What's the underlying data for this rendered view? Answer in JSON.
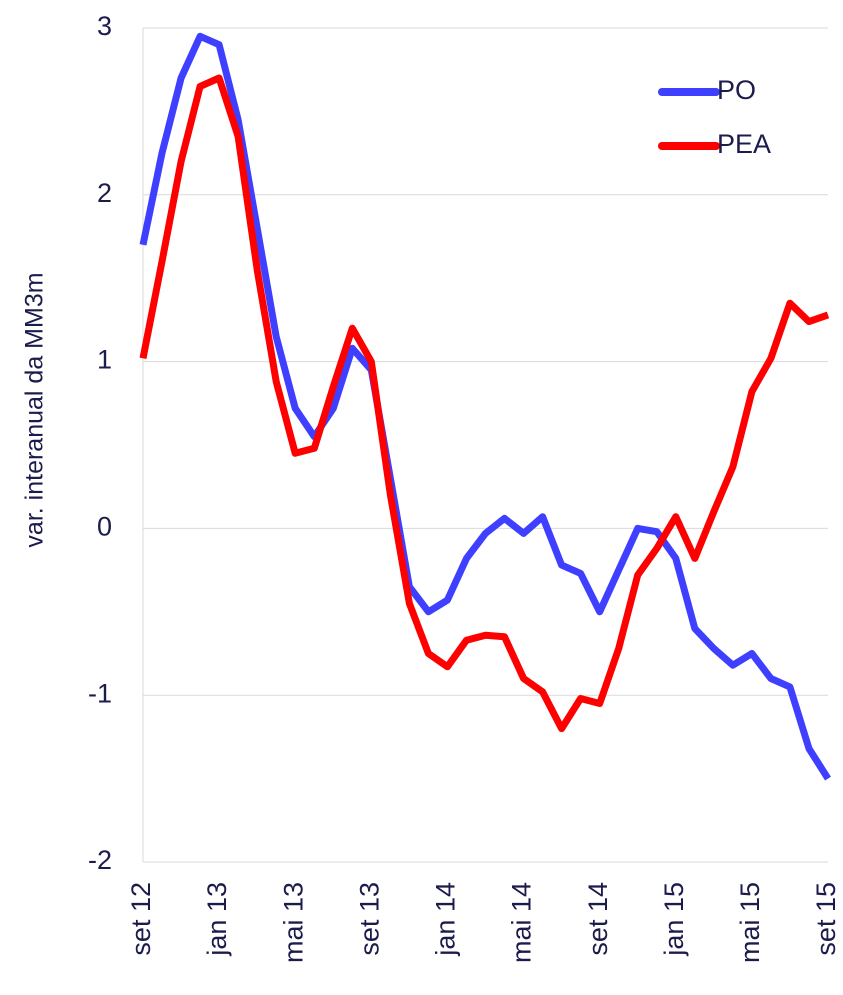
{
  "chart_data": {
    "type": "line",
    "ylabel": "var. interanual da MM3m",
    "categories": [
      "set 12",
      null,
      null,
      null,
      "jan 13",
      null,
      null,
      null,
      "mai 13",
      null,
      null,
      null,
      "set 13",
      null,
      null,
      null,
      "jan 14",
      null,
      null,
      null,
      "mai 14",
      null,
      null,
      null,
      "set 14",
      null,
      null,
      null,
      "jan 15",
      null,
      null,
      null,
      "mai 15",
      null,
      null,
      null,
      "set 15"
    ],
    "series": [
      {
        "name": "PO",
        "color": "#3f3fff",
        "values": [
          1.7,
          2.25,
          2.7,
          2.95,
          2.9,
          2.45,
          1.8,
          1.15,
          0.72,
          0.55,
          0.72,
          1.08,
          0.95,
          0.3,
          -0.35,
          -0.5,
          -0.43,
          -0.18,
          -0.03,
          0.06,
          -0.03,
          0.07,
          -0.22,
          -0.27,
          -0.5,
          -0.25,
          0.0,
          -0.02,
          -0.18,
          -0.6,
          -0.72,
          -0.82,
          -0.75,
          -0.9,
          -0.95,
          -1.32,
          -1.5
        ]
      },
      {
        "name": "PEA",
        "color": "#ff0000",
        "values": [
          1.02,
          1.6,
          2.2,
          2.65,
          2.7,
          2.35,
          1.55,
          0.88,
          0.45,
          0.48,
          0.85,
          1.2,
          1.0,
          0.2,
          -0.45,
          -0.75,
          -0.83,
          -0.67,
          -0.64,
          -0.65,
          -0.9,
          -0.98,
          -1.2,
          -1.02,
          -1.05,
          -0.72,
          -0.28,
          -0.12,
          0.07,
          -0.18,
          0.1,
          0.37,
          0.82,
          1.02,
          1.35,
          1.24,
          1.28
        ]
      }
    ],
    "ylim": [
      -2,
      3
    ],
    "yticks": [
      -2,
      -1,
      0,
      1,
      2,
      3
    ],
    "grid": true,
    "legend": "upper right"
  }
}
